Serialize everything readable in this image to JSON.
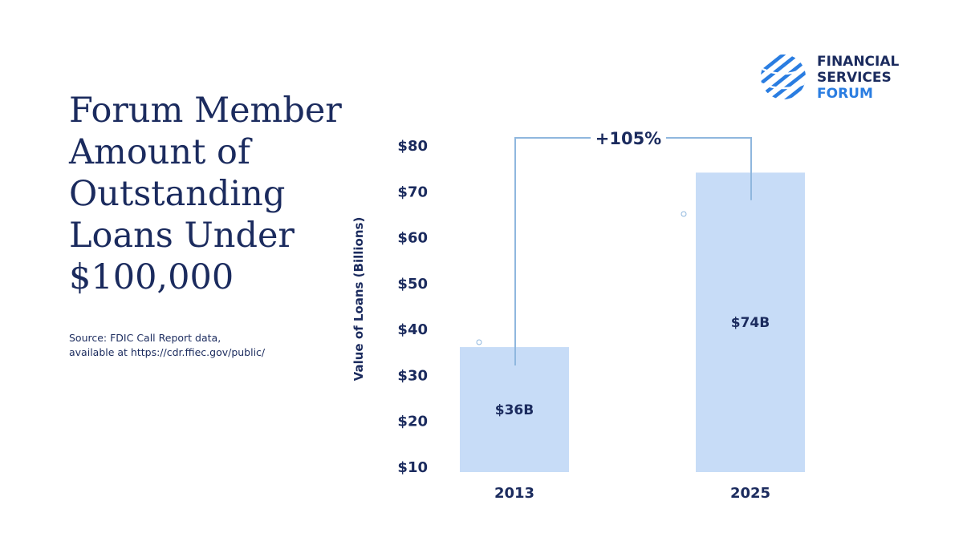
{
  "title_lines": [
    "Forum Member",
    "Amount of",
    "Outstanding",
    "Loans Under",
    "$100,000"
  ],
  "source_lines": [
    "Source: FDIC Call Report data,",
    "available at https://cdr.ffiec.gov/public/"
  ],
  "logo": {
    "lines": [
      "FINANCIAL",
      "SERVICES",
      "FORUM"
    ],
    "colors": [
      "#1b2b5e",
      "#1b2b5e",
      "#2a7de1"
    ],
    "icon": "globe-stripes-icon"
  },
  "colors": {
    "bar": "#c7dcf7",
    "bracket": "#8fb7de",
    "text": "#1b2b5e"
  },
  "chart_data": {
    "type": "bar",
    "categories": [
      "2013",
      "2025"
    ],
    "values": [
      36,
      74
    ],
    "data_labels": [
      "$36B",
      "$74B"
    ],
    "ylabel": "Value of Loans (Billions)",
    "yticks": [
      "$10",
      "$20",
      "$30",
      "$40",
      "$50",
      "$60",
      "$70",
      "$80"
    ],
    "ytick_values": [
      10,
      20,
      30,
      40,
      50,
      60,
      70,
      80
    ],
    "ylim": [
      10,
      80
    ],
    "grid": false,
    "annotation": "+105%"
  }
}
